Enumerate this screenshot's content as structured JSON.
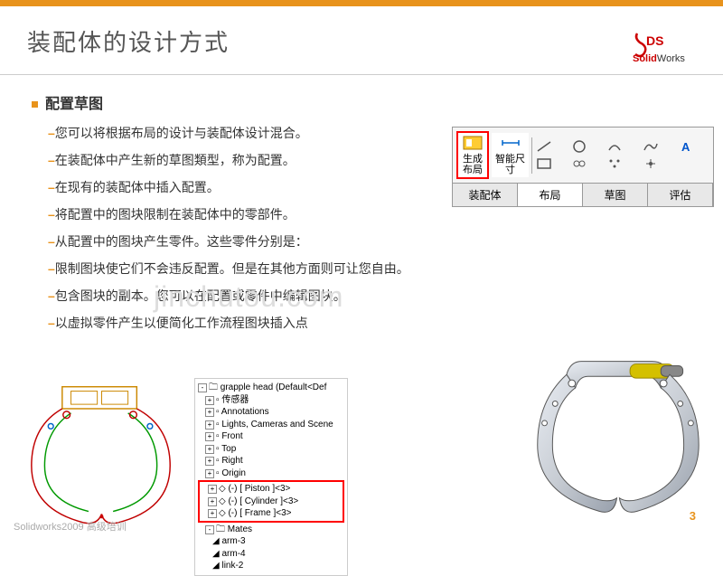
{
  "header": {
    "accent_color": "#e8931c"
  },
  "title": "装配体的设计方式",
  "logo": {
    "brand": "SolidWorks",
    "prefix": "Solid",
    "suffix": "Works"
  },
  "section": {
    "heading": "配置草图"
  },
  "points": [
    "您可以将根据布局的设计与装配体设计混合。",
    "在装配体中产生新的草图類型，称为配置。",
    "在现有的装配体中插入配置。",
    "将配置中的图块限制在装配体中的零部件。",
    "从配置中的图块产生零件。这些零件分别是：",
    "限制图块使它们不会违反配置。但是在其他方面则可让您自由。",
    "包含图块的副本。您可以在配置或零件中编辑图块。",
    "以虚拟零件产生以便简化工作流程图块插入点"
  ],
  "toolbar": {
    "btn_layout": "生成\n布局",
    "btn_dim": "智能尺\n寸",
    "tabs": [
      "装配体",
      "布局",
      "草图",
      "评估"
    ],
    "active_tab_index": 1
  },
  "tree": {
    "root": "grapple head (Default<Def",
    "rows": [
      "传感器",
      "Annotations",
      "Lights, Cameras and Scene",
      "Front",
      "Top",
      "Right",
      "Origin"
    ],
    "highlighted": [
      "(-) [ Piston ]<3>",
      "(-) [ Cylinder ]<3>",
      "(-) [ Frame ]<3>"
    ],
    "mates": "Mates",
    "extras": [
      "arm-3",
      "arm-4",
      "link-2"
    ]
  },
  "watermark": "jinchutou.com",
  "footer": "Solidworks2009 高级培训",
  "page": "3",
  "sketch": {
    "stroke_outer": "#c00000",
    "stroke_inner": "#009900",
    "stroke_box": "#cc8800"
  },
  "render": {
    "body": "#c8cdd4",
    "body_dark": "#98a0ac",
    "edge": "#555",
    "piston": "#d4c000"
  }
}
